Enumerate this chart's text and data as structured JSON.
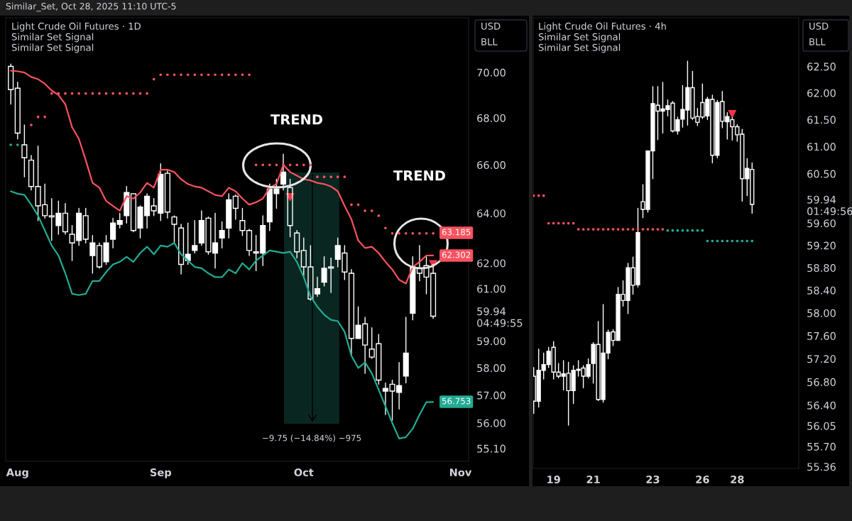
{
  "chart_data": [
    {
      "type": "candlestick",
      "title": "Light Crude Oil Futures · 1D",
      "color": "#ffffff",
      "log": true,
      "categories": [
        null,
        "Aug",
        null,
        null,
        null,
        null,
        null,
        null,
        null,
        null,
        null,
        null,
        null,
        null,
        null,
        null,
        null,
        null,
        null,
        null,
        null,
        null,
        "Sep",
        null,
        null,
        null,
        null,
        null,
        null,
        null,
        null,
        null,
        null,
        null,
        null,
        null,
        null,
        null,
        null,
        null,
        null,
        null,
        null,
        "Oct",
        null,
        null,
        null,
        null,
        null,
        null,
        null,
        null,
        null,
        null,
        null,
        null,
        null,
        null,
        null,
        null,
        null,
        null,
        null,
        null,
        null,
        null,
        "Nov"
      ],
      "ohlc": [
        [
          70.27,
          70.38,
          68.6,
          69.24
        ],
        [
          69.3,
          69.57,
          67.1,
          67.35
        ],
        [
          66.85,
          67.7,
          65.5,
          66.3
        ],
        [
          66.2,
          66.4,
          64.95,
          65.1
        ],
        [
          65.1,
          66.8,
          63.7,
          64.3
        ],
        [
          64.35,
          65.2,
          63.8,
          63.9
        ],
        [
          63.9,
          64.6,
          62.9,
          63.85
        ],
        [
          63.5,
          64.5,
          63.15,
          64.0
        ],
        [
          64.0,
          64.4,
          63.15,
          63.25
        ],
        [
          63.15,
          63.5,
          62.1,
          62.8
        ],
        [
          62.9,
          64.2,
          62.7,
          64.0
        ],
        [
          63.9,
          64.2,
          62.8,
          62.95
        ],
        [
          62.3,
          63.1,
          61.6,
          62.8
        ],
        [
          62.7,
          62.8,
          61.8,
          61.85
        ],
        [
          62.05,
          63.1,
          61.95,
          62.8
        ],
        [
          62.95,
          63.8,
          62.6,
          63.6
        ],
        [
          63.55,
          64.0,
          63.4,
          63.7
        ],
        [
          63.9,
          65.1,
          63.6,
          64.85
        ],
        [
          64.8,
          64.8,
          63.25,
          63.3
        ],
        [
          63.4,
          64.3,
          63.0,
          64.25
        ],
        [
          63.9,
          64.8,
          63.4,
          64.7
        ],
        [
          64.3,
          64.6,
          63.9,
          64.1
        ],
        [
          64.0,
          66.05,
          63.7,
          65.6
        ],
        [
          65.65,
          65.75,
          63.8,
          64.05
        ],
        [
          63.85,
          63.9,
          62.8,
          63.55
        ],
        [
          63.4,
          63.55,
          61.57,
          61.95
        ],
        [
          62.1,
          63.6,
          61.95,
          62.35
        ],
        [
          62.5,
          63.7,
          62.4,
          62.7
        ],
        [
          62.8,
          64.1,
          62.7,
          63.7
        ],
        [
          63.8,
          63.85,
          62.35,
          62.45
        ],
        [
          62.4,
          64.0,
          61.8,
          62.8
        ],
        [
          63.0,
          63.65,
          62.6,
          63.3
        ],
        [
          63.4,
          64.8,
          63.0,
          64.55
        ],
        [
          64.7,
          64.75,
          63.75,
          64.2
        ],
        [
          63.7,
          64.2,
          63.1,
          63.3
        ],
        [
          63.3,
          63.35,
          62.3,
          62.5
        ],
        [
          62.45,
          63.1,
          61.7,
          62.4
        ],
        [
          62.4,
          63.9,
          61.9,
          63.5
        ],
        [
          63.65,
          65.2,
          63.3,
          65.0
        ],
        [
          64.8,
          65.4,
          64.2,
          65.0
        ],
        [
          65.2,
          66.45,
          64.95,
          65.7
        ],
        [
          65.05,
          65.4,
          63.05,
          63.5
        ],
        [
          63.2,
          63.3,
          62.2,
          62.45
        ],
        [
          62.5,
          63.0,
          61.5,
          61.85
        ],
        [
          61.85,
          62.7,
          60.55,
          60.6
        ],
        [
          60.8,
          61.45,
          60.7,
          61.0
        ],
        [
          61.25,
          62.25,
          61.1,
          61.8
        ],
        [
          61.85,
          62.2,
          60.85,
          61.8
        ],
        [
          62.15,
          63.0,
          61.85,
          62.7
        ],
        [
          62.4,
          62.7,
          61.35,
          61.65
        ],
        [
          61.6,
          61.75,
          58.45,
          59.1
        ],
        [
          59.1,
          60.3,
          59.1,
          59.6
        ],
        [
          59.65,
          59.9,
          57.8,
          58.85
        ],
        [
          58.7,
          59.5,
          58.35,
          58.4
        ],
        [
          58.9,
          59.25,
          57.4,
          57.55
        ],
        [
          57.15,
          57.45,
          56.3,
          57.25
        ],
        [
          57.4,
          57.55,
          56.1,
          57.15
        ],
        [
          57.1,
          58.2,
          56.5,
          57.35
        ],
        [
          57.7,
          59.9,
          57.45,
          58.55
        ],
        [
          60.05,
          62.25,
          59.8,
          61.85
        ],
        [
          61.8,
          62.7,
          61.3,
          61.6
        ],
        [
          61.9,
          62.25,
          60.8,
          61.45
        ],
        [
          61.6,
          61.95,
          59.85,
          59.94
        ],
        null,
        null,
        null,
        null
      ],
      "series": [
        {
          "type": "line",
          "color": "#f7525f",
          "values": [
            70.08,
            70.05,
            70.0,
            69.8,
            69.7,
            69.5,
            69.2,
            69.0,
            68.6,
            67.6,
            67.1,
            66.2,
            65.25,
            65.05,
            64.5,
            64.3,
            64.1,
            64.7,
            64.6,
            64.85,
            65.25,
            65.05,
            65.8,
            65.8,
            65.7,
            65.4,
            65.2,
            65.1,
            65.05,
            64.9,
            64.75,
            64.7,
            65.05,
            64.9,
            64.6,
            64.35,
            64.45,
            64.6,
            65.05,
            65.2,
            66.0,
            65.7,
            65.55,
            65.4,
            65.35,
            65.25,
            65.2,
            65.1,
            64.9,
            64.3,
            63.75,
            62.9,
            62.6,
            62.65,
            62.4,
            62.05,
            61.75,
            61.35,
            61.2,
            61.85,
            62.05,
            62.3,
            62.302,
            null,
            null,
            null,
            null
          ]
        },
        {
          "type": "line",
          "color": "#22ab94",
          "values": [
            64.9,
            64.8,
            64.75,
            64.35,
            63.9,
            63.3,
            62.7,
            62.3,
            61.6,
            60.8,
            60.75,
            60.8,
            61.3,
            61.3,
            61.65,
            61.95,
            62.05,
            62.25,
            62.05,
            62.4,
            62.65,
            62.35,
            62.7,
            62.65,
            62.8,
            62.35,
            62.1,
            61.85,
            61.8,
            61.6,
            61.45,
            61.45,
            61.75,
            61.6,
            62.0,
            61.75,
            62.1,
            62.3,
            62.5,
            62.45,
            62.4,
            62.45,
            62.05,
            61.45,
            60.7,
            60.3,
            60.0,
            59.8,
            59.75,
            59.35,
            58.45,
            58.0,
            58.2,
            57.8,
            57.2,
            56.6,
            56.0,
            55.45,
            55.5,
            55.8,
            56.3,
            56.75,
            56.753,
            null,
            null,
            null,
            null
          ]
        },
        {
          "type": "scatter",
          "marker": "circle",
          "color": "#f7525f",
          "values": [
            null,
            null,
            null,
            67.7,
            68.05,
            68.05,
            69.07,
            69.07,
            69.07,
            69.07,
            69.07,
            69.07,
            69.07,
            69.07,
            69.07,
            69.07,
            69.07,
            69.07,
            69.07,
            69.07,
            69.07,
            69.7,
            69.9,
            69.9,
            69.9,
            69.9,
            69.9,
            69.9,
            69.9,
            69.9,
            69.9,
            69.9,
            69.9,
            69.9,
            69.9,
            69.9,
            66.0,
            66.0,
            66.0,
            66.0,
            66.0,
            66.0,
            66.0,
            66.0,
            66.0,
            65.5,
            65.5,
            65.5,
            65.5,
            65.5,
            64.35,
            64.35,
            64.1,
            64.1,
            63.9,
            63.4,
            63.185,
            63.185,
            63.185,
            63.185,
            63.185,
            63.185,
            63.185,
            null,
            null,
            null,
            null
          ]
        },
        {
          "type": "scatter",
          "marker": "circle",
          "color": "#22ab94",
          "values": [
            66.85,
            66.85,
            null,
            null,
            null,
            null,
            null,
            null,
            null,
            null,
            null,
            null,
            null,
            null,
            null,
            null,
            null,
            null,
            null,
            null,
            null,
            null,
            null,
            null,
            null,
            null,
            null,
            null,
            null,
            null,
            null,
            null,
            null,
            null,
            null,
            null,
            null,
            null,
            null,
            null,
            null,
            null,
            null,
            null,
            null,
            null,
            null,
            null,
            null,
            null,
            null,
            null,
            null,
            null,
            null,
            null,
            null,
            null,
            null,
            null,
            null,
            null,
            null,
            null,
            null,
            null,
            null
          ]
        },
        {
          "type": "scatter",
          "marker": "triangle",
          "color": "#f23645",
          "values": [
            null,
            null,
            null,
            null,
            null,
            null,
            null,
            null,
            null,
            null,
            null,
            null,
            null,
            null,
            null,
            null,
            null,
            null,
            null,
            null,
            null,
            null,
            null,
            null,
            null,
            null,
            null,
            null,
            null,
            null,
            null,
            null,
            null,
            null,
            null,
            null,
            null,
            null,
            null,
            null,
            null,
            64.65,
            null,
            null,
            null,
            null,
            null,
            null,
            null,
            null,
            null,
            null,
            null,
            null,
            null,
            null,
            null,
            null,
            null,
            null,
            null,
            null,
            61.95,
            null,
            null,
            null,
            null
          ]
        }
      ],
      "ylim": [
        54.65,
        72.48
      ],
      "yticks": [
        {
          "value": 70,
          "label": "70.00"
        },
        {
          "value": 68,
          "label": "68.00"
        },
        {
          "value": 66,
          "label": "66.00"
        },
        {
          "value": 64,
          "label": "64.00"
        },
        {
          "value": 62,
          "label": "62.00"
        },
        {
          "value": 61,
          "label": "61.00"
        },
        {
          "value": 59.94,
          "label": "59.94\n04:49:55"
        },
        {
          "value": 59,
          "label": "59.00"
        },
        {
          "value": 58,
          "label": "58.00"
        },
        {
          "value": 57,
          "label": "57.00"
        },
        {
          "value": 56,
          "label": "56.00"
        },
        {
          "value": 55.1,
          "label": "55.10"
        }
      ],
      "annotations": [
        "Similar_Set, Oct 28, 2025 11:10 UTC-5",
        "Similar Set Signal",
        "Similar Set Signal",
        "USD",
        "BLL",
        "TREND",
        "TREND",
        "−9.75 (−14.84%) −975",
        "63.185",
        "62.302",
        "56.753"
      ]
    },
    {
      "type": "candlestick",
      "title": "Light Crude Oil Futures · 4h",
      "color": "#ffffff",
      "log": true,
      "categories": [
        null,
        null,
        null,
        null,
        "19",
        null,
        null,
        null,
        null,
        null,
        null,
        null,
        "21",
        null,
        null,
        null,
        null,
        null,
        null,
        null,
        null,
        null,
        null,
        null,
        "23",
        null,
        null,
        null,
        null,
        null,
        null,
        null,
        null,
        null,
        "26",
        null,
        null,
        null,
        null,
        null,
        null,
        "28",
        null,
        null,
        null,
        null,
        null,
        null,
        null,
        null,
        null,
        null,
        null,
        null
      ],
      "ohlc": [
        [
          56.9,
          57.05,
          56.26,
          56.47
        ],
        [
          56.47,
          57.37,
          56.37,
          57.0
        ],
        [
          57.0,
          57.3,
          56.85,
          57.1
        ],
        [
          57.1,
          57.4,
          57.05,
          57.33
        ],
        [
          57.4,
          57.5,
          56.85,
          56.97
        ],
        [
          56.97,
          57.12,
          56.87,
          56.9
        ],
        [
          56.9,
          57.17,
          56.66,
          56.94
        ],
        [
          56.95,
          57.14,
          56.06,
          56.65
        ],
        [
          56.65,
          57.08,
          56.43,
          57.0
        ],
        [
          57.0,
          57.17,
          56.9,
          57.02
        ],
        [
          57.04,
          57.08,
          56.7,
          56.9
        ],
        [
          56.9,
          57.2,
          56.87,
          57.1
        ],
        [
          57.12,
          57.48,
          56.78,
          57.45
        ],
        [
          57.45,
          57.85,
          56.48,
          56.5
        ],
        [
          56.5,
          58.15,
          56.45,
          57.3
        ],
        [
          57.3,
          57.7,
          57.2,
          57.66
        ],
        [
          57.67,
          57.71,
          57.43,
          57.52
        ],
        [
          57.52,
          58.45,
          57.52,
          58.33
        ],
        [
          58.33,
          58.57,
          58.12,
          58.22
        ],
        [
          58.22,
          58.88,
          57.99,
          58.8
        ],
        [
          58.8,
          58.99,
          58.33,
          58.49
        ],
        [
          58.5,
          59.87,
          58.46,
          59.43
        ],
        [
          59.99,
          60.3,
          59.7,
          59.85
        ],
        [
          59.85,
          60.92,
          59.8,
          60.92
        ],
        [
          60.92,
          62.12,
          60.41,
          61.8
        ],
        [
          61.77,
          62.12,
          61.13,
          61.66
        ],
        [
          61.66,
          62.2,
          61.25,
          61.7
        ],
        [
          61.69,
          61.87,
          61.57,
          61.76
        ],
        [
          61.81,
          61.84,
          61.27,
          61.29
        ],
        [
          61.29,
          61.55,
          61.23,
          61.5
        ],
        [
          61.51,
          62.14,
          61.36,
          61.69
        ],
        [
          61.68,
          62.6,
          61.4,
          62.1
        ],
        [
          62.1,
          62.41,
          61.5,
          61.53
        ],
        [
          61.56,
          61.71,
          61.39,
          61.45
        ],
        [
          61.82,
          62.17,
          61.52,
          61.55
        ],
        [
          61.57,
          61.92,
          61.5,
          61.88
        ],
        [
          61.88,
          61.96,
          60.7,
          60.84
        ],
        [
          60.84,
          61.86,
          60.79,
          61.82
        ],
        [
          61.84,
          62.03,
          61.35,
          61.47
        ],
        [
          61.46,
          61.63,
          61.14,
          61.56
        ],
        [
          61.5,
          61.54,
          61.12,
          61.37
        ],
        [
          61.37,
          61.41,
          61.1,
          61.22
        ],
        [
          61.23,
          61.32,
          60.0,
          60.41
        ],
        [
          60.41,
          60.78,
          60.1,
          60.6
        ],
        [
          60.58,
          60.7,
          59.78,
          59.94
        ],
        null,
        null,
        null,
        null,
        null,
        null,
        null,
        null,
        null
      ],
      "series": [
        {
          "type": "scatter",
          "marker": "circle",
          "color": "#f7525f",
          "values": [
            60.1,
            60.1,
            60.1,
            59.6,
            59.6,
            59.6,
            59.6,
            59.6,
            59.6,
            59.49,
            59.49,
            59.49,
            59.49,
            59.49,
            59.49,
            59.49,
            59.49,
            59.49,
            59.49,
            59.49,
            59.49,
            59.49,
            59.49,
            59.49,
            59.49,
            59.49,
            59.49,
            null,
            null,
            null,
            null,
            null,
            null,
            null,
            null,
            null,
            null,
            null,
            null,
            null,
            null,
            null,
            null,
            null,
            null,
            null,
            null,
            null,
            null,
            null,
            null,
            null,
            null,
            null
          ]
        },
        {
          "type": "scatter",
          "marker": "circle",
          "color": "#22ab94",
          "values": [
            null,
            null,
            null,
            null,
            null,
            null,
            null,
            null,
            null,
            null,
            null,
            null,
            null,
            null,
            null,
            null,
            null,
            null,
            null,
            null,
            null,
            null,
            null,
            null,
            null,
            null,
            null,
            59.47,
            59.47,
            59.47,
            59.47,
            59.47,
            59.47,
            59.47,
            59.47,
            59.28,
            59.28,
            59.28,
            59.28,
            59.28,
            59.28,
            59.28,
            59.28,
            59.28,
            59.28,
            null,
            null,
            null,
            null,
            null,
            null,
            null,
            null,
            null
          ]
        },
        {
          "type": "scatter",
          "marker": "triangle",
          "color": "#f23645",
          "values": [
            null,
            null,
            null,
            null,
            null,
            null,
            null,
            null,
            null,
            null,
            null,
            null,
            null,
            null,
            null,
            null,
            null,
            null,
            null,
            null,
            null,
            null,
            null,
            null,
            null,
            null,
            null,
            null,
            null,
            null,
            null,
            null,
            null,
            null,
            null,
            null,
            null,
            null,
            null,
            null,
            61.6,
            null,
            null,
            null,
            null,
            null,
            null,
            null,
            null,
            null,
            null,
            null,
            null,
            null
          ]
        }
      ],
      "ylim": [
        55.33,
        63.43
      ],
      "yticks": [
        {
          "value": 62.5,
          "label": "62.50"
        },
        {
          "value": 62,
          "label": "62.00"
        },
        {
          "value": 61.5,
          "label": "61.50"
        },
        {
          "value": 61,
          "label": "61.00"
        },
        {
          "value": 60.5,
          "label": "60.50"
        },
        {
          "value": 59.94,
          "label": "59.94\n01:49:56"
        },
        {
          "value": 59.6,
          "label": "59.60"
        },
        {
          "value": 59.2,
          "label": "59.20"
        },
        {
          "value": 58.8,
          "label": "58.80"
        },
        {
          "value": 58.4,
          "label": "58.40"
        },
        {
          "value": 58,
          "label": "58.00"
        },
        {
          "value": 57.6,
          "label": "57.60"
        },
        {
          "value": 57.2,
          "label": "57.20"
        },
        {
          "value": 56.8,
          "label": "56.80"
        },
        {
          "value": 56.4,
          "label": "56.40"
        },
        {
          "value": 56.05,
          "label": "56.05"
        },
        {
          "value": 55.7,
          "label": "55.70"
        },
        {
          "value": 55.36,
          "label": "55.36"
        }
      ],
      "annotations": [
        "Similar Set Signal",
        "Similar Set Signal",
        "USD",
        "BLL"
      ]
    }
  ]
}
